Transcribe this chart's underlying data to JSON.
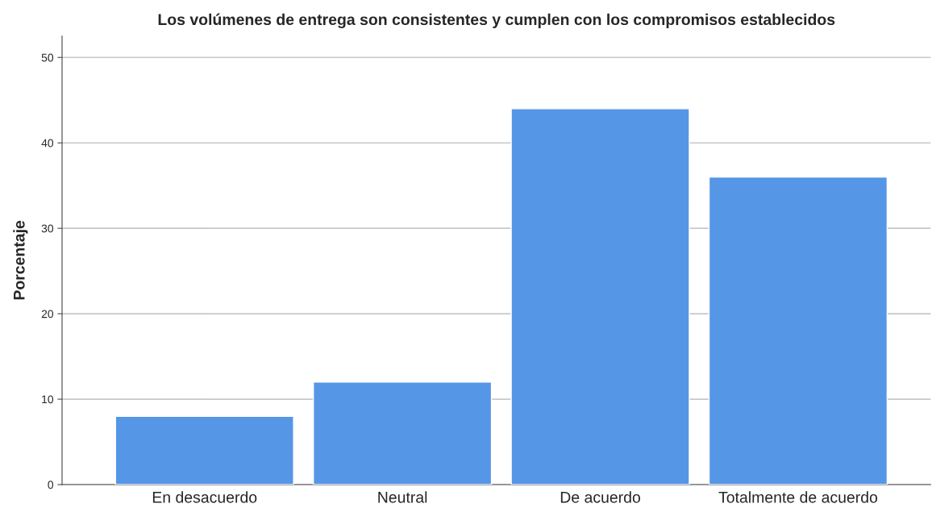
{
  "chart_data": {
    "type": "bar",
    "title": "Los volúmenes de entrega son consistentes y cumplen con los compromisos establecidos",
    "ylabel": "Porcentaje",
    "categories": [
      "En desacuerdo",
      "Neutral",
      "De acuerdo",
      "Totalmente de acuerdo"
    ],
    "values": [
      8,
      12,
      44,
      36
    ],
    "color": "#5596e6",
    "ylim": [
      0,
      52.5
    ],
    "yticks": [
      0,
      10,
      20,
      30,
      40,
      50
    ],
    "grid": "y"
  }
}
